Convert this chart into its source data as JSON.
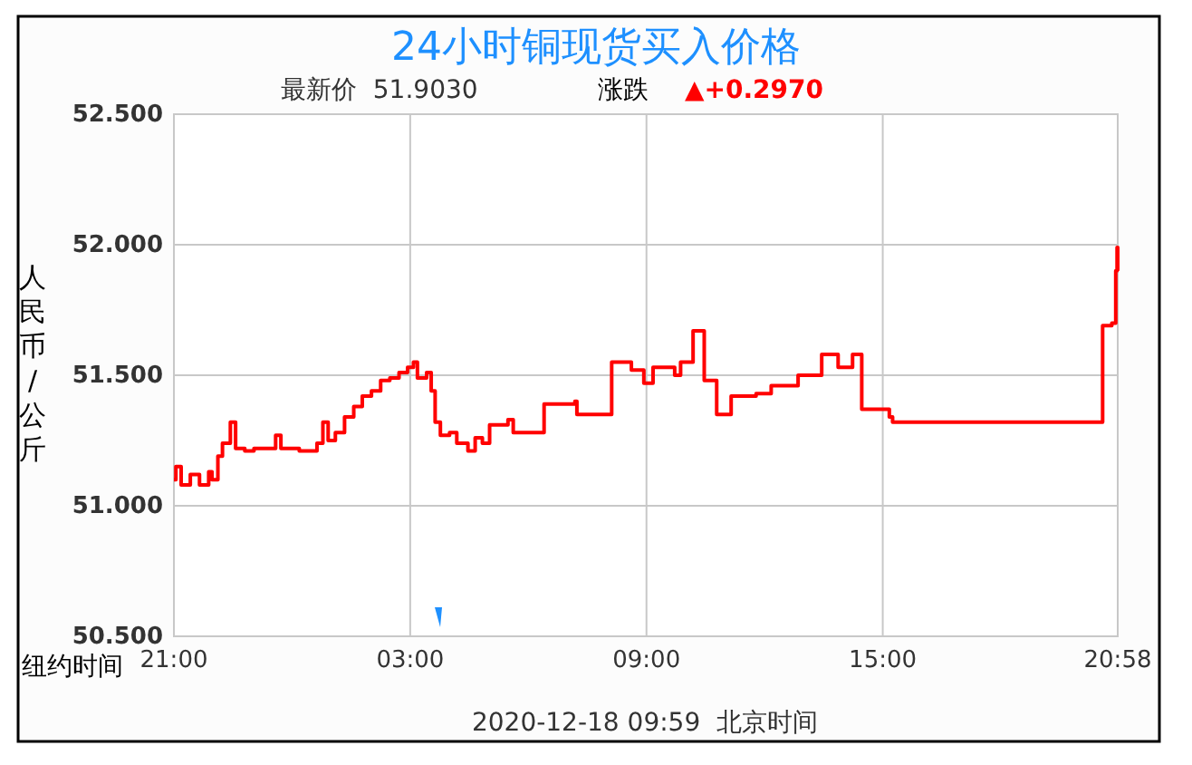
{
  "chart_data": {
    "type": "step",
    "title": "24小时铜现货买入价格",
    "subtitle": "最新价  51.9030",
    "xlabel": "2020-12-18 09:59  北京时间",
    "ylabel": "人民币/公斤",
    "annotations": [
      "涨跌",
      "▲+0.2970",
      "纽约时间"
    ],
    "x": [
      "2020-12-16T21:00",
      "2020-12-16T21:03",
      "2020-12-16T21:11",
      "2020-12-16T21:25",
      "2020-12-16T21:39",
      "2020-12-16T21:53",
      "2020-12-16T21:58",
      "2020-12-16T22:07",
      "2020-12-16T22:14",
      "2020-12-16T22:26",
      "2020-12-16T22:34",
      "2020-12-16T22:48",
      "2020-12-16T23:02",
      "2020-12-16T23:29",
      "2020-12-16T23:35",
      "2020-12-16T23:43",
      "2020-12-17T00:11",
      "2020-12-17T00:38",
      "2020-12-17T00:47",
      "2020-12-17T00:55",
      "2020-12-17T01:06",
      "2020-12-17T01:20",
      "2020-12-17T01:34",
      "2020-12-17T01:47",
      "2020-12-17T02:01",
      "2020-12-17T02:15",
      "2020-12-17T02:29",
      "2020-12-17T02:43",
      "2020-12-17T02:56",
      "2020-12-17T03:05",
      "2020-12-17T03:11",
      "2020-12-17T03:25",
      "2020-12-17T03:32",
      "2020-12-17T03:38",
      "2020-12-17T03:46",
      "2020-12-17T04:00",
      "2020-12-17T04:11",
      "2020-12-17T04:28",
      "2020-12-17T04:39",
      "2020-12-17T04:50",
      "2020-12-17T05:01",
      "2020-12-17T05:29",
      "2020-12-17T05:37",
      "2020-12-17T06:24",
      "2020-12-17T07:11",
      "2020-12-17T07:14",
      "2020-12-17T07:47",
      "2020-12-17T08:07",
      "2020-12-17T08:37",
      "2020-12-17T08:56",
      "2020-12-17T09:10",
      "2020-12-17T09:43",
      "2020-12-17T09:52",
      "2020-12-17T10:11",
      "2020-12-17T10:25",
      "2020-12-17T10:28",
      "2020-12-17T10:47",
      "2020-12-17T11:09",
      "2020-12-17T11:47",
      "2020-12-17T12:10",
      "2020-12-17T12:51",
      "2020-12-17T13:27",
      "2020-12-17T13:52",
      "2020-12-17T14:14",
      "2020-12-17T14:28",
      "2020-12-17T15:10",
      "2020-12-17T15:15",
      "2020-12-17T20:33",
      "2020-12-17T20:35",
      "2020-12-17T20:49",
      "2020-12-17T20:55",
      "2020-12-17T20:57",
      "2020-12-17T20:58"
    ],
    "series": [
      {
        "color": "#ff0000",
        "values": [
          51.1,
          51.15,
          51.08,
          51.12,
          51.08,
          51.13,
          51.1,
          51.19,
          51.24,
          51.32,
          51.22,
          51.21,
          51.22,
          51.22,
          51.27,
          51.22,
          51.21,
          51.24,
          51.32,
          51.25,
          51.28,
          51.34,
          51.38,
          51.42,
          51.44,
          51.48,
          51.49,
          51.51,
          51.53,
          51.55,
          51.49,
          51.51,
          51.44,
          51.32,
          51.27,
          51.28,
          51.24,
          51.21,
          51.26,
          51.24,
          51.31,
          51.33,
          51.28,
          51.39,
          51.4,
          51.35,
          51.35,
          51.55,
          51.52,
          51.47,
          51.53,
          51.5,
          51.55,
          51.67,
          51.67,
          51.48,
          51.35,
          51.42,
          51.43,
          51.46,
          51.5,
          51.58,
          51.53,
          51.58,
          51.37,
          51.34,
          51.32,
          51.32,
          51.69,
          51.7,
          51.9,
          51.99,
          51.9
        ]
      }
    ],
    "xlim": [
      "2020-12-16T21:00",
      "2020-12-17T20:58"
    ],
    "xticks": [
      {
        "value": "2020-12-16T21:00",
        "label": "21:00"
      },
      {
        "value": "2020-12-17T03:00",
        "label": "03:00"
      },
      {
        "value": "2020-12-17T09:00",
        "label": "09:00"
      },
      {
        "value": "2020-12-17T15:00",
        "label": "15:00"
      },
      {
        "value": "2020-12-17T20:58",
        "label": "20:58"
      }
    ],
    "ylim": [
      50.5,
      52.5
    ],
    "yticks": [
      {
        "value": 50.5,
        "label": "50.500"
      },
      {
        "value": 51,
        "label": "51.000"
      },
      {
        "value": 51.5,
        "label": "51.500"
      },
      {
        "value": 52,
        "label": "52.000"
      },
      {
        "value": 52.5,
        "label": "52.500"
      }
    ],
    "grid": true,
    "line_style": "solid",
    "marker": "none"
  }
}
